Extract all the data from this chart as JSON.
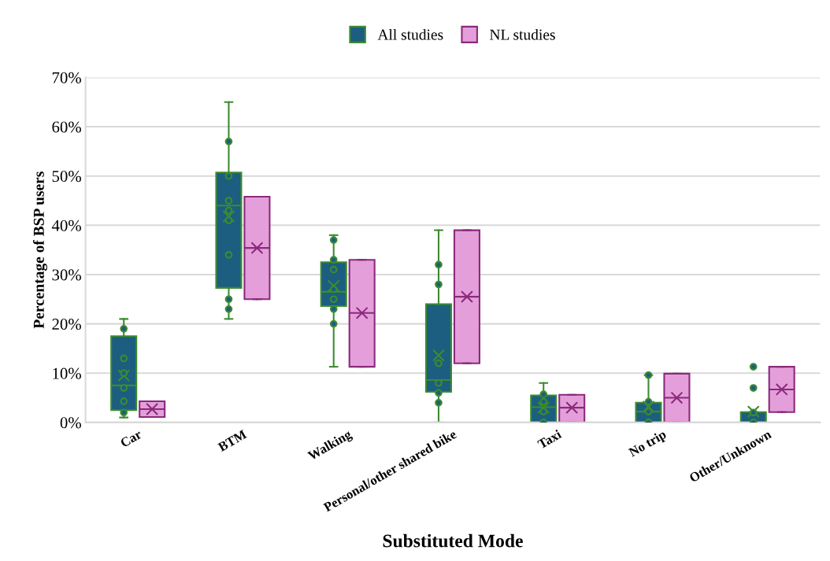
{
  "chart_data": {
    "type": "box",
    "xlabel": "Substituted Mode",
    "ylabel": "Percentage of BSP users",
    "categories": [
      "Car",
      "BTM",
      "Walking",
      "Personal/other shared bike",
      "Taxi",
      "No trip",
      "Other/Unknown"
    ],
    "ylim": [
      0,
      70
    ],
    "yticks": [
      {
        "value": 0,
        "label": "0%"
      },
      {
        "value": 10,
        "label": "10%"
      },
      {
        "value": 20,
        "label": "20%"
      },
      {
        "value": 30,
        "label": "30%"
      },
      {
        "value": 40,
        "label": "40%"
      },
      {
        "value": 50,
        "label": "50%"
      },
      {
        "value": 60,
        "label": "60%"
      },
      {
        "value": 70,
        "label": "70%"
      }
    ],
    "grid": "y",
    "legend": "top",
    "series": [
      {
        "name": "All studies",
        "color": "#1b5e80",
        "boxes": [
          {
            "low": 1,
            "q1": 2.5,
            "median": 7.5,
            "q3": 17.5,
            "high": 21,
            "mean": 9.5
          },
          {
            "low": 21,
            "q1": 27.3,
            "median": 44,
            "q3": 50.7,
            "high": 65,
            "mean": 41.8
          },
          {
            "low": 11.3,
            "q1": 23.6,
            "median": 26.5,
            "q3": 32.5,
            "high": 38,
            "mean": 27.7
          },
          {
            "low": 0,
            "q1": 6.2,
            "median": 8.6,
            "q3": 24,
            "high": 39,
            "mean": 13.6
          },
          {
            "low": 0,
            "q1": 0,
            "median": 3.1,
            "q3": 5.5,
            "high": 8,
            "mean": 3
          },
          {
            "low": 0,
            "q1": 0,
            "median": 2.2,
            "q3": 4,
            "high": 9.6,
            "mean": 3.2
          },
          {
            "low": 0,
            "q1": 0,
            "median": 0,
            "q3": 2.1,
            "high": 2.1,
            "mean": 2.2
          }
        ]
      },
      {
        "name": "NL studies",
        "color": "#e49fda",
        "boxes": [
          {
            "low": 1.1,
            "q1": 1.1,
            "median": 2.7,
            "q3": 4.3,
            "high": 4.3,
            "mean": 2.7
          },
          {
            "low": 25,
            "q1": 25,
            "median": 35.4,
            "q3": 45.8,
            "high": 45.8,
            "mean": 35.4
          },
          {
            "low": 11.3,
            "q1": 11.3,
            "median": 22.2,
            "q3": 33,
            "high": 33,
            "mean": 22.2
          },
          {
            "low": 12,
            "q1": 12,
            "median": 25.5,
            "q3": 39,
            "high": 39,
            "mean": 25.5
          },
          {
            "low": 0,
            "q1": 0,
            "median": 3,
            "q3": 5.6,
            "high": 5.6,
            "mean": 3
          },
          {
            "low": 0,
            "q1": 0,
            "median": 5,
            "q3": 9.9,
            "high": 9.9,
            "mean": 5
          },
          {
            "low": 2.1,
            "q1": 2.1,
            "median": 6.7,
            "q3": 11.3,
            "high": 11.3,
            "mean": 6.7
          }
        ]
      },
      {
        "type": "scatter",
        "color": "#1b5e80",
        "marker": "circle",
        "x": [
          "Car",
          "Car",
          "Car",
          "Car",
          "Car",
          "Car",
          "BTM",
          "BTM",
          "BTM",
          "BTM",
          "BTM",
          "BTM",
          "BTM",
          "BTM",
          "Walking",
          "Walking",
          "Walking",
          "Walking",
          "Walking",
          "Walking",
          "Walking",
          "Personal/other shared bike",
          "Personal/other shared bike",
          "Personal/other shared bike",
          "Personal/other shared bike",
          "Personal/other shared bike",
          "Personal/other shared bike",
          "Taxi",
          "Taxi",
          "Taxi",
          "Taxi",
          "No trip",
          "No trip",
          "No trip",
          "No trip",
          "Other/Unknown",
          "Other/Unknown",
          "Other/Unknown",
          "Other/Unknown"
        ],
        "values": [
          19,
          13,
          10,
          7,
          4.3,
          2,
          57,
          50,
          45,
          43,
          41,
          34,
          25,
          23,
          37,
          33,
          31,
          27,
          25,
          23,
          20,
          32,
          28,
          12,
          8,
          6,
          4,
          5.7,
          4.2,
          2.2,
          0,
          9.6,
          4.2,
          2.2,
          0,
          11.3,
          7,
          2,
          0
        ]
      }
    ]
  }
}
